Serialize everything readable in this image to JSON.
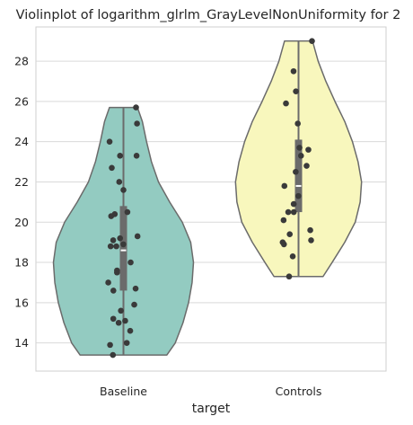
{
  "chart_data": {
    "type": "violin",
    "title": "Violinplot of logarithm_glrlm_GrayLevelNonUniformity for 2",
    "xlabel": "target",
    "ylabel": "",
    "categories": [
      "Baseline",
      "Controls"
    ],
    "ylim": [
      12.6,
      29.7
    ],
    "yticks": [
      14,
      16,
      18,
      20,
      22,
      24,
      26,
      28
    ],
    "grid": "horizontal",
    "legend": "none",
    "colors": {
      "Baseline": "#93cbc1",
      "Controls": "#f8f7bd",
      "points": "#3a3a3a",
      "box": "#6b6b6b",
      "outline": "#6b6b6b",
      "grid": "#d9d9d9"
    },
    "series": [
      {
        "category": "Baseline",
        "range": [
          13.4,
          25.7
        ],
        "quartiles": [
          16.6,
          18.6,
          20.8
        ],
        "density": [
          [
            13.4,
            0.62
          ],
          [
            14.0,
            0.74
          ],
          [
            15.0,
            0.85
          ],
          [
            16.0,
            0.93
          ],
          [
            17.0,
            0.98
          ],
          [
            18.0,
            1.0
          ],
          [
            19.0,
            0.96
          ],
          [
            20.0,
            0.84
          ],
          [
            21.0,
            0.66
          ],
          [
            22.0,
            0.5
          ],
          [
            23.0,
            0.4
          ],
          [
            24.0,
            0.33
          ],
          [
            25.0,
            0.27
          ],
          [
            25.7,
            0.2
          ]
        ],
        "points": [
          25.7,
          24.9,
          24.0,
          23.3,
          23.3,
          22.7,
          22.0,
          21.6,
          20.5,
          20.4,
          20.3,
          19.3,
          19.2,
          19.1,
          18.9,
          18.8,
          18.8,
          18.0,
          17.6,
          17.5,
          17.0,
          16.7,
          16.6,
          15.9,
          15.6,
          15.2,
          15.1,
          15.0,
          14.6,
          14.0,
          13.9,
          13.4
        ]
      },
      {
        "category": "Controls",
        "range": [
          17.3,
          29.0
        ],
        "quartiles": [
          20.5,
          21.8,
          24.1
        ],
        "density": [
          [
            17.3,
            0.35
          ],
          [
            18.0,
            0.48
          ],
          [
            19.0,
            0.66
          ],
          [
            20.0,
            0.81
          ],
          [
            21.0,
            0.88
          ],
          [
            22.0,
            0.9
          ],
          [
            23.0,
            0.85
          ],
          [
            24.0,
            0.77
          ],
          [
            25.0,
            0.66
          ],
          [
            26.0,
            0.52
          ],
          [
            27.0,
            0.39
          ],
          [
            28.0,
            0.28
          ],
          [
            29.0,
            0.2
          ]
        ],
        "points": [
          29.0,
          27.5,
          26.5,
          25.9,
          24.9,
          23.7,
          23.6,
          23.3,
          22.8,
          22.5,
          21.8,
          21.3,
          20.9,
          20.5,
          20.5,
          20.1,
          19.6,
          19.4,
          19.1,
          19.0,
          18.9,
          18.3,
          17.3
        ]
      }
    ]
  }
}
